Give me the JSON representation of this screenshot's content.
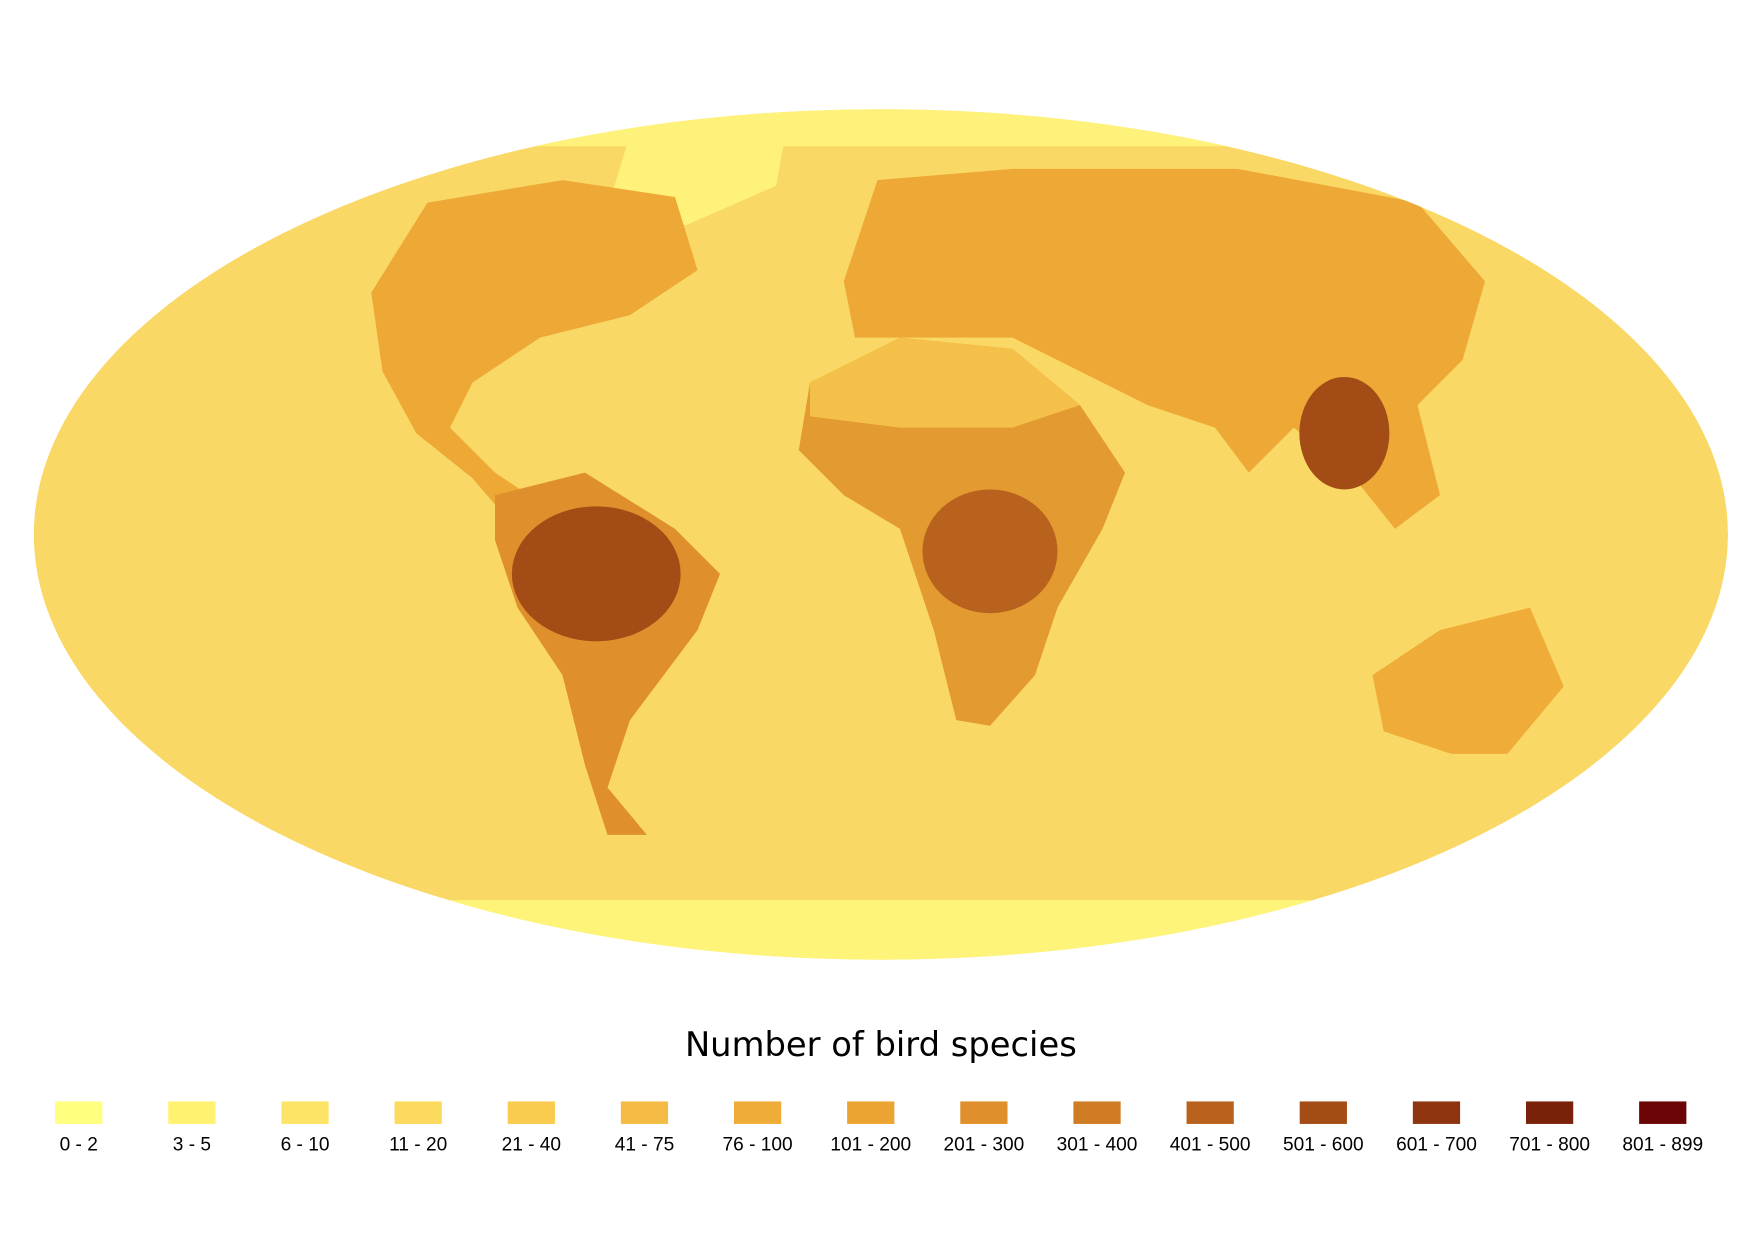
{
  "legend": {
    "title": "Number of bird species",
    "items": [
      {
        "label": "0 - 2",
        "color": "#ffff80"
      },
      {
        "label": "3 - 5",
        "color": "#fff270"
      },
      {
        "label": "6 - 10",
        "color": "#fee466"
      },
      {
        "label": "11 - 20",
        "color": "#fcda5e"
      },
      {
        "label": "21 - 40",
        "color": "#f9cc50"
      },
      {
        "label": "41 - 75",
        "color": "#f5bc45"
      },
      {
        "label": "76 - 100",
        "color": "#f0ac38"
      },
      {
        "label": "101 - 200",
        "color": "#eba332"
      },
      {
        "label": "201 - 300",
        "color": "#df8f2c"
      },
      {
        "label": "301 - 400",
        "color": "#d07c25"
      },
      {
        "label": "401 - 500",
        "color": "#b9621d"
      },
      {
        "label": "501 - 600",
        "color": "#a34c15"
      },
      {
        "label": "601 - 700",
        "color": "#8e3510"
      },
      {
        "label": "701 - 800",
        "color": "#7a210a"
      },
      {
        "label": "801 - 899",
        "color": "#6b0505"
      }
    ]
  }
}
